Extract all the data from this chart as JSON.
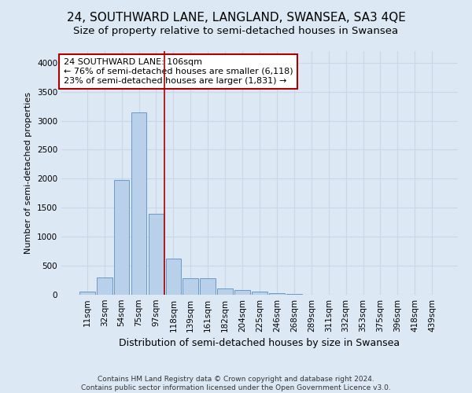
{
  "title": "24, SOUTHWARD LANE, LANGLAND, SWANSEA, SA3 4QE",
  "subtitle": "Size of property relative to semi-detached houses in Swansea",
  "xlabel": "Distribution of semi-detached houses by size in Swansea",
  "ylabel": "Number of semi-detached properties",
  "footer_line1": "Contains HM Land Registry data © Crown copyright and database right 2024.",
  "footer_line2": "Contains public sector information licensed under the Open Government Licence v3.0.",
  "bar_labels": [
    "11sqm",
    "32sqm",
    "54sqm",
    "75sqm",
    "97sqm",
    "118sqm",
    "139sqm",
    "161sqm",
    "182sqm",
    "204sqm",
    "225sqm",
    "246sqm",
    "268sqm",
    "289sqm",
    "311sqm",
    "332sqm",
    "353sqm",
    "375sqm",
    "396sqm",
    "418sqm",
    "439sqm"
  ],
  "bar_values": [
    50,
    300,
    1975,
    3150,
    1390,
    625,
    285,
    285,
    110,
    75,
    50,
    30,
    15,
    5,
    2,
    1,
    0,
    0,
    0,
    0,
    0
  ],
  "bar_color": "#b8d0ea",
  "bar_edge_color": "#5a8fc2",
  "annotation_line1": "24 SOUTHWARD LANE: 106sqm",
  "annotation_line2": "← 76% of semi-detached houses are smaller (6,118)",
  "annotation_line3": "23% of semi-detached houses are larger (1,831) →",
  "annotation_box_color": "#ffffff",
  "annotation_box_edge": "#aa0000",
  "vline_x": 4.5,
  "vline_color": "#aa0000",
  "ylim": [
    0,
    4200
  ],
  "yticks": [
    0,
    500,
    1000,
    1500,
    2000,
    2500,
    3000,
    3500,
    4000
  ],
  "grid_color": "#c8d8e8",
  "bg_color": "#dce8f4",
  "title_fontsize": 11,
  "subtitle_fontsize": 9.5,
  "annotation_fontsize": 8,
  "tick_fontsize": 7.5,
  "ylabel_fontsize": 8,
  "xlabel_fontsize": 9,
  "footer_fontsize": 6.5
}
